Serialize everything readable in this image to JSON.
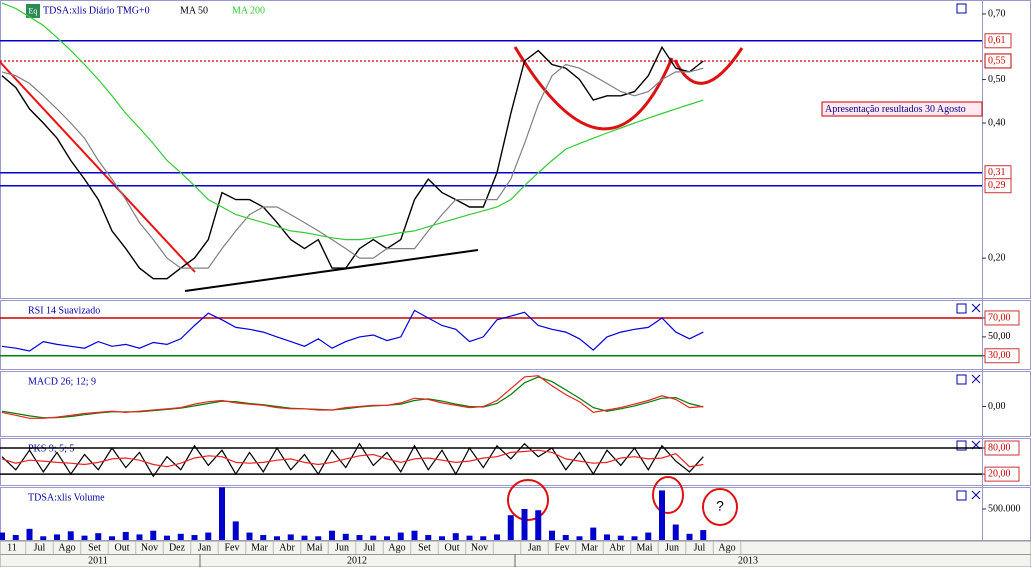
{
  "icon_label": "Eq",
  "chart_data": [
    {
      "type": "line",
      "title": "TDSA:xlis Diário TMG+0",
      "log_scale": true,
      "ylim": [
        0.163,
        0.752
      ],
      "yticks": [
        {
          "value": 0.7,
          "label": "0,70"
        },
        {
          "value": 0.5,
          "label": "0,50"
        },
        {
          "value": 0.4,
          "label": "0,40"
        },
        {
          "value": 0.2,
          "label": "0,20"
        }
      ],
      "levels": [
        {
          "value": 0.61,
          "label": "0,61",
          "color": "#0000cc"
        },
        {
          "value": 0.55,
          "label": "0,55",
          "color": "#cc0000"
        },
        {
          "value": 0.31,
          "label": "0,31",
          "color": "#0000cc"
        },
        {
          "value": 0.29,
          "label": "0,29",
          "color": "#0000cc"
        }
      ],
      "annotation": "Apresentação resultados 30 Agosto",
      "annotation_2": "?",
      "series": [
        {
          "color": "#000000",
          "values": [
            0.51,
            0.48,
            0.43,
            0.4,
            0.37,
            0.33,
            0.3,
            0.27,
            0.23,
            0.21,
            0.19,
            0.18,
            0.18,
            0.19,
            0.2,
            0.22,
            0.28,
            0.27,
            0.27,
            0.26,
            0.24,
            0.22,
            0.21,
            0.22,
            0.19,
            0.19,
            0.21,
            0.22,
            0.21,
            0.22,
            0.27,
            0.3,
            0.28,
            0.27,
            0.26,
            0.26,
            0.31,
            0.42,
            0.55,
            0.58,
            0.54,
            0.53,
            0.5,
            0.45,
            0.46,
            0.46,
            0.47,
            0.51,
            0.59,
            0.53,
            0.52,
            0.55
          ]
        },
        {
          "name": "MA 50",
          "color": "#808080",
          "values": [
            0.52,
            0.51,
            0.49,
            0.46,
            0.43,
            0.4,
            0.37,
            0.33,
            0.3,
            0.27,
            0.24,
            0.22,
            0.2,
            0.19,
            0.19,
            0.19,
            0.21,
            0.23,
            0.25,
            0.26,
            0.26,
            0.25,
            0.24,
            0.23,
            0.22,
            0.21,
            0.2,
            0.2,
            0.21,
            0.21,
            0.21,
            0.23,
            0.25,
            0.27,
            0.27,
            0.27,
            0.27,
            0.3,
            0.36,
            0.44,
            0.51,
            0.54,
            0.53,
            0.51,
            0.49,
            0.47,
            0.46,
            0.47,
            0.5,
            0.52,
            0.52,
            0.53
          ]
        },
        {
          "name": "MA 200",
          "color": "#33cc33",
          "values": [
            0.74,
            0.72,
            0.69,
            0.66,
            0.62,
            0.58,
            0.54,
            0.5,
            0.46,
            0.42,
            0.39,
            0.36,
            0.33,
            0.31,
            0.29,
            0.27,
            0.26,
            0.25,
            0.245,
            0.24,
            0.235,
            0.23,
            0.228,
            0.225,
            0.222,
            0.22,
            0.22,
            0.222,
            0.225,
            0.228,
            0.23,
            0.235,
            0.24,
            0.245,
            0.25,
            0.255,
            0.26,
            0.27,
            0.29,
            0.31,
            0.33,
            0.35,
            0.36,
            0.37,
            0.38,
            0.39,
            0.4,
            0.41,
            0.42,
            0.43,
            0.44,
            0.45
          ]
        }
      ]
    },
    {
      "type": "line",
      "title": "RSI 14 Suavizado",
      "ylim": [
        16,
        89
      ],
      "yticks": [
        {
          "value": 70,
          "label": "70,00"
        },
        {
          "value": 50,
          "label": "50,00"
        },
        {
          "value": 30,
          "label": "30,00"
        }
      ],
      "levels": [
        {
          "value": 70,
          "color": "#cc0000"
        },
        {
          "value": 30,
          "color": "#008000"
        }
      ],
      "series": [
        {
          "color": "#0000dd",
          "values": [
            40,
            38,
            35,
            45,
            42,
            40,
            38,
            45,
            40,
            42,
            38,
            44,
            42,
            48,
            62,
            75,
            68,
            60,
            58,
            55,
            50,
            45,
            40,
            48,
            38,
            45,
            50,
            52,
            46,
            50,
            78,
            70,
            62,
            58,
            45,
            50,
            68,
            72,
            76,
            62,
            58,
            55,
            48,
            36,
            50,
            55,
            58,
            60,
            70,
            55,
            48,
            55
          ]
        }
      ]
    },
    {
      "type": "line",
      "title": "MACD 26; 12; 9",
      "ylim": [
        -0.05,
        0.06
      ],
      "yticks": [
        {
          "value": 0,
          "label": "0,00"
        }
      ],
      "series": [
        {
          "color": "#008000",
          "values": [
            -0.008,
            -0.012,
            -0.016,
            -0.019,
            -0.019,
            -0.017,
            -0.014,
            -0.011,
            -0.009,
            -0.009,
            -0.009,
            -0.007,
            -0.005,
            -0.003,
            0.001,
            0.005,
            0.009,
            0.008,
            0.005,
            0.003,
            0.0,
            -0.003,
            -0.004,
            -0.005,
            -0.006,
            -0.004,
            -0.001,
            0.001,
            0.002,
            0.004,
            0.01,
            0.013,
            0.009,
            0.004,
            0.0,
            -0.001,
            0.005,
            0.02,
            0.04,
            0.05,
            0.042,
            0.028,
            0.014,
            -0.002,
            -0.008,
            -0.004,
            0.001,
            0.007,
            0.014,
            0.015,
            0.005,
            -0.001
          ]
        },
        {
          "color": "#ee2222",
          "values": [
            -0.01,
            -0.015,
            -0.02,
            -0.02,
            -0.018,
            -0.015,
            -0.012,
            -0.01,
            -0.008,
            -0.01,
            -0.008,
            -0.006,
            -0.004,
            -0.002,
            0.004,
            0.008,
            0.01,
            0.006,
            0.004,
            0.002,
            -0.002,
            -0.004,
            -0.004,
            -0.006,
            -0.006,
            -0.002,
            0.0,
            0.002,
            0.002,
            0.006,
            0.014,
            0.012,
            0.006,
            0.002,
            -0.002,
            0.0,
            0.01,
            0.03,
            0.05,
            0.052,
            0.035,
            0.02,
            0.008,
            -0.01,
            -0.006,
            -0.002,
            0.004,
            0.01,
            0.018,
            0.012,
            -0.002,
            0.0
          ]
        }
      ]
    },
    {
      "type": "line",
      "title": "PKS 9; 5; 5",
      "ylim": [
        -5,
        103
      ],
      "yticks": [
        {
          "value": 80,
          "label": "80,00"
        },
        {
          "value": 20,
          "label": "20,00"
        }
      ],
      "levels": [
        {
          "value": 80,
          "color": "#000000"
        },
        {
          "value": 20,
          "color": "#000000"
        }
      ],
      "series": [
        {
          "color": "#000000",
          "values": [
            60,
            30,
            75,
            25,
            70,
            20,
            65,
            30,
            80,
            35,
            70,
            15,
            60,
            30,
            85,
            40,
            75,
            20,
            70,
            25,
            80,
            30,
            65,
            20,
            75,
            35,
            90,
            40,
            70,
            25,
            85,
            30,
            75,
            20,
            80,
            35,
            85,
            55,
            90,
            60,
            80,
            30,
            70,
            20,
            75,
            40,
            80,
            30,
            85,
            50,
            25,
            60
          ]
        },
        {
          "color": "#ee2222",
          "values": [
            55,
            45,
            52,
            50,
            47,
            45,
            42,
            47,
            55,
            57,
            52,
            42,
            37,
            45,
            57,
            62,
            60,
            47,
            45,
            47,
            52,
            55,
            47,
            42,
            47,
            55,
            62,
            65,
            55,
            47,
            55,
            57,
            52,
            47,
            50,
            57,
            60,
            70,
            72,
            75,
            70,
            55,
            50,
            45,
            47,
            57,
            60,
            55,
            57,
            67,
            37,
            42
          ]
        }
      ]
    },
    {
      "type": "bar",
      "title": "TDSA:xlis Volume",
      "color": "#0000cc",
      "ylim": [
        0,
        855000
      ],
      "yticks": [
        {
          "value": 500000,
          "label": "500.000"
        }
      ],
      "values": [
        120000,
        80000,
        180000,
        60000,
        90000,
        140000,
        70000,
        110000,
        60000,
        130000,
        90000,
        150000,
        70000,
        100000,
        80000,
        120000,
        850000,
        300000,
        120000,
        80000,
        60000,
        90000,
        70000,
        60000,
        150000,
        100000,
        80000,
        70000,
        60000,
        120000,
        150000,
        80000,
        60000,
        110000,
        70000,
        60000,
        90000,
        400000,
        500000,
        480000,
        150000,
        80000,
        60000,
        200000,
        90000,
        70000,
        60000,
        120000,
        800000,
        250000,
        100000,
        160000
      ]
    }
  ],
  "x_axis": {
    "categories": [
      "11",
      "Jul",
      "Ago",
      "Set",
      "Out",
      "Nov",
      "Dez",
      "Jan",
      "Fev",
      "Mar",
      "Abr",
      "Mai",
      "Jun",
      "Jul",
      "Ago",
      "Set",
      "Out",
      "Nov",
      null,
      "Jan",
      "Fev",
      "Mar",
      "Abr",
      "Mai",
      "Jun",
      "Jul",
      "Ago"
    ],
    "years": [
      "2011",
      "2012",
      "2013"
    ]
  }
}
